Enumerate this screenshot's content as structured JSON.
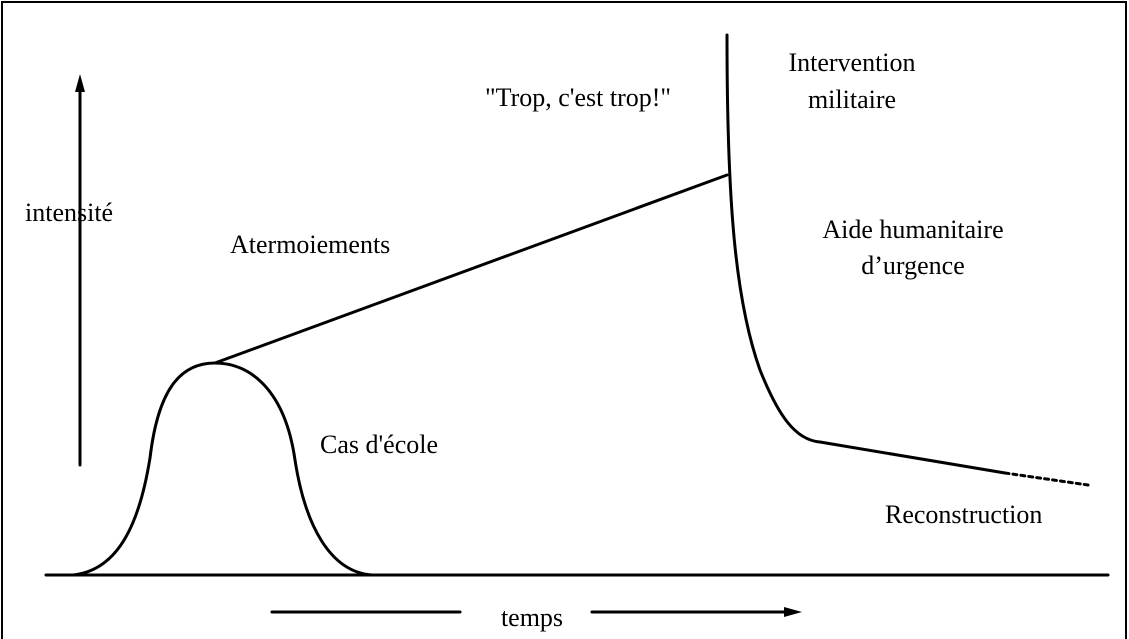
{
  "axes": {
    "y_label": "intensité",
    "x_label": "temps"
  },
  "phases": [
    {
      "label": "Cas d'école"
    },
    {
      "label": "Atermoiements"
    },
    {
      "label": "\"Trop, c'est trop!\""
    },
    {
      "label_lines": [
        "Intervention",
        "militaire"
      ]
    },
    {
      "label_lines": [
        "Aide humanitaire",
        "d’urgence"
      ]
    },
    {
      "label": "Reconstruction"
    }
  ]
}
